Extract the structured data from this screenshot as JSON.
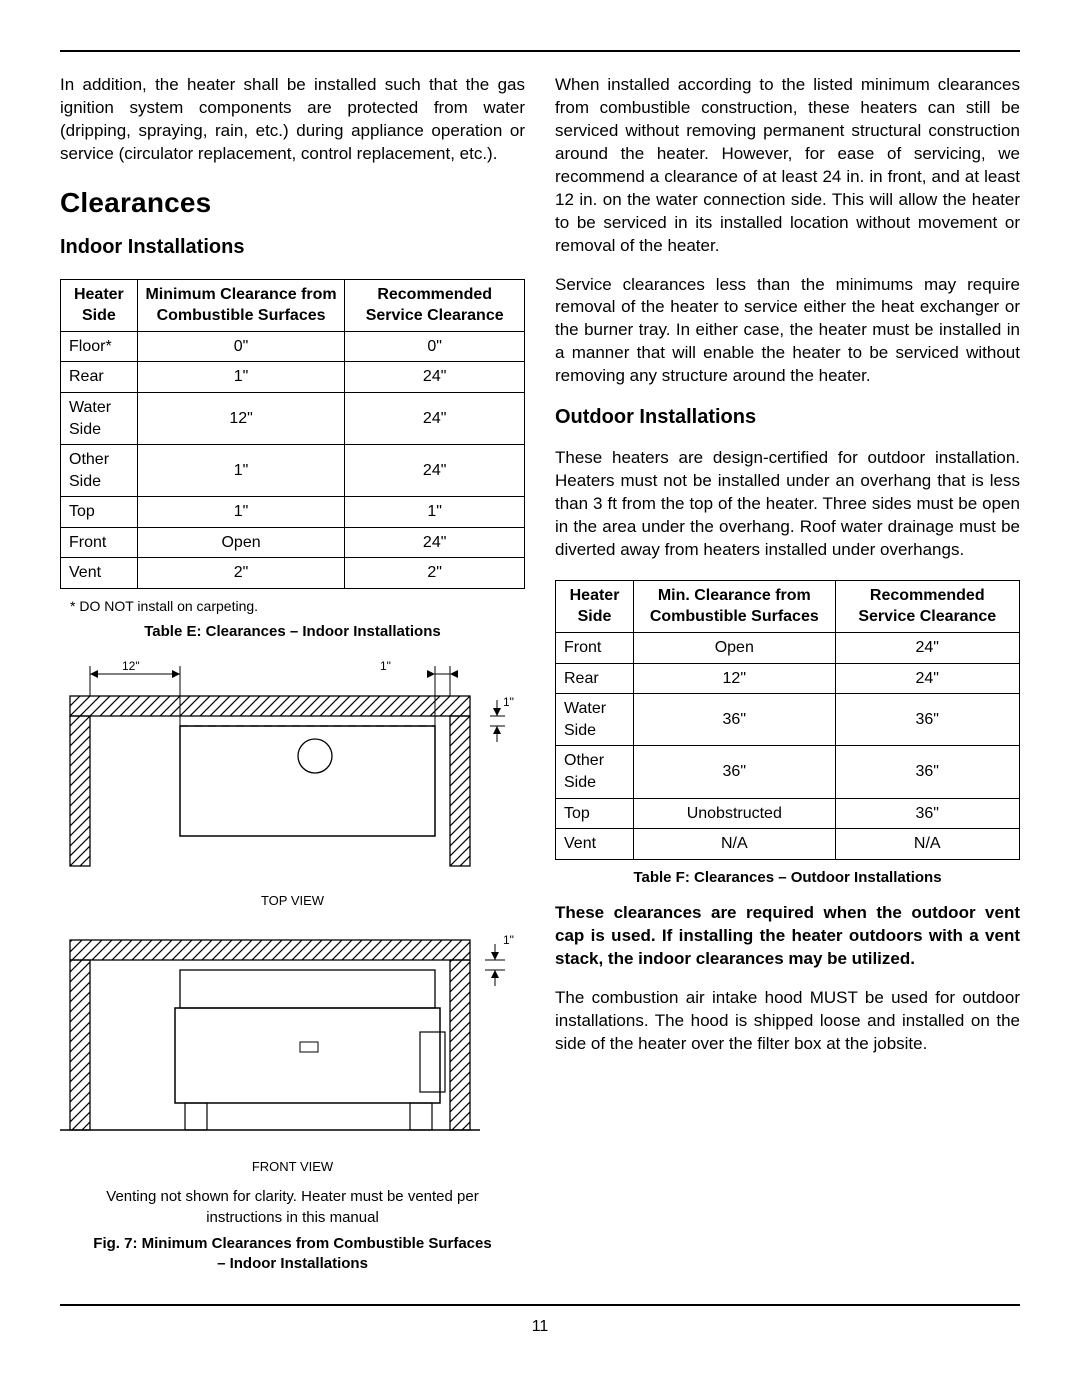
{
  "page_number": "11",
  "left": {
    "intro": "In addition, the heater shall be installed such that the gas ignition system components are protected from water (dripping, spraying, rain, etc.) during appliance operation or service (circulator replacement, control replacement, etc.).",
    "h1": "Clearances",
    "h2": "Indoor Installations",
    "table_headers": [
      "Heater Side",
      "Minimum Clearance from Combustible Surfaces",
      "Recommended Service Clearance"
    ],
    "table_rows": [
      [
        "Floor*",
        "0\"",
        "0\""
      ],
      [
        "Rear",
        "1\"",
        "24\""
      ],
      [
        "Water Side",
        "12\"",
        "24\""
      ],
      [
        "Other Side",
        "1\"",
        "24\""
      ],
      [
        "Top",
        "1\"",
        "1\""
      ],
      [
        "Front",
        "Open",
        "24\""
      ],
      [
        "Vent",
        "2\"",
        "2\""
      ]
    ],
    "footnote": "* DO NOT install on carpeting.",
    "table_caption": "Table E: Clearances – Indoor Installations",
    "diagram": {
      "dim_12": "12\"",
      "dim_1a": "1\"",
      "dim_1b": "1\"",
      "dim_1c": "1\"",
      "top_view": "TOP VIEW",
      "front_view": "FRONT VIEW"
    },
    "fig_note": "Venting not shown for clarity. Heater must be vented per instructions in this manual",
    "fig_caption": "Fig. 7: Minimum Clearances from Combustible Surfaces – Indoor Installations"
  },
  "right": {
    "p1": "When installed according to the listed minimum clearances from combustible construction, these heaters can still be serviced without removing permanent structural construction around the heater. However, for ease of servicing, we recommend a clearance of at least 24 in. in front, and at least 12 in. on the water connection side. This will allow the heater to be serviced in its installed location without movement or removal of the heater.",
    "p2": "Service clearances less than the minimums may require removal of the heater to service either the heat exchanger or the burner tray. In either case, the heater must be installed in a manner that will enable the heater to be serviced without removing any structure around the heater.",
    "h2": "Outdoor Installations",
    "p3": "These heaters are design-certified for outdoor installation. Heaters must not be installed under an overhang that is less than 3 ft from the top of the heater. Three sides must be open in the area under the overhang. Roof water drainage must be diverted away from heaters installed under overhangs.",
    "table_headers": [
      "Heater Side",
      "Min. Clearance from Combustible Surfaces",
      "Recommended Service Clearance"
    ],
    "table_rows": [
      [
        "Front",
        "Open",
        "24\""
      ],
      [
        "Rear",
        "12\"",
        "24\""
      ],
      [
        "Water Side",
        "36\"",
        "36\""
      ],
      [
        "Other Side",
        "36\"",
        "36\""
      ],
      [
        "Top",
        "Unobstructed",
        "36\""
      ],
      [
        "Vent",
        "N/A",
        "N/A"
      ]
    ],
    "table_caption": "Table F:  Clearances – Outdoor Installations",
    "bold_note": "These clearances are required when the outdoor vent cap is used. If installing the heater outdoors with a vent stack, the indoor clearances may be utilized.",
    "p4": "The combustion air intake hood MUST be used for outdoor installations. The hood is shipped loose and installed on the side of the heater over the filter box at the jobsite."
  }
}
